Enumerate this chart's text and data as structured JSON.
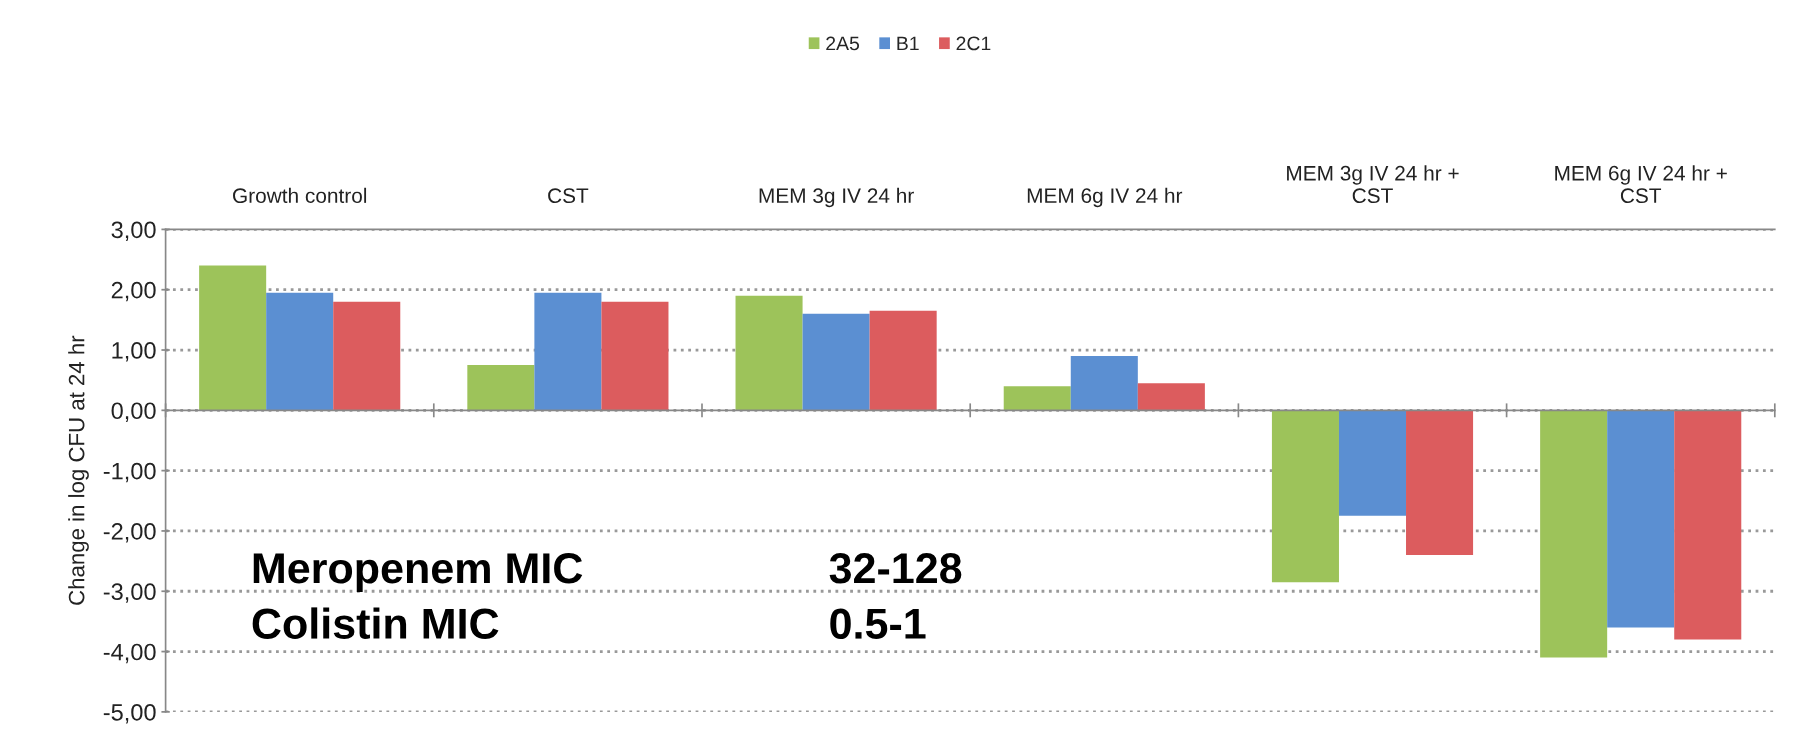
{
  "chart_data": {
    "type": "bar",
    "ylabel": "Change in log CFU at 24 hr",
    "categories": [
      "Growth control",
      "CST",
      "MEM 3g IV 24 hr",
      "MEM 6g IV 24 hr",
      "MEM 3g IV 24 hr +\nCST",
      "MEM 6g IV 24 hr +\nCST"
    ],
    "series": [
      {
        "name": "2A5",
        "color": "#9dc35a",
        "values": [
          2.4,
          0.75,
          1.9,
          0.4,
          -2.85,
          -4.1
        ]
      },
      {
        "name": "B1",
        "color": "#5b8fd2",
        "values": [
          1.95,
          1.95,
          1.6,
          0.9,
          -1.75,
          -3.6
        ]
      },
      {
        "name": "2C1",
        "color": "#dc5c5e",
        "values": [
          1.8,
          1.8,
          1.65,
          0.45,
          -2.4,
          -3.8
        ]
      }
    ],
    "ylim": [
      -5,
      3
    ],
    "yticks": [
      {
        "value": 3,
        "label": "3,00"
      },
      {
        "value": 2,
        "label": "2,00"
      },
      {
        "value": 1,
        "label": "1,00"
      },
      {
        "value": 0,
        "label": "0,00"
      },
      {
        "value": -1,
        "label": "-1,00"
      },
      {
        "value": -2,
        "label": "-2,00"
      },
      {
        "value": -3,
        "label": "-3,00"
      },
      {
        "value": -4,
        "label": "-4,00"
      },
      {
        "value": -5,
        "label": "-5,00"
      }
    ],
    "grid": "y",
    "legend": "top",
    "annotations": [
      "Meropenem MIC",
      "32-128",
      "Colistin MIC",
      "0.5-1"
    ]
  }
}
